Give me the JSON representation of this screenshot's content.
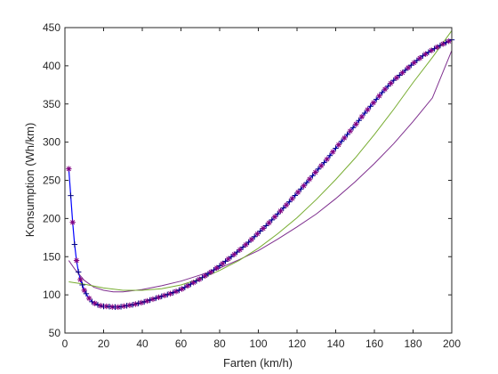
{
  "chart_data": {
    "type": "line",
    "title": "",
    "xlabel": "Farten (km/h)",
    "ylabel": "Konsumption (Wh/km)",
    "xlim": [
      0,
      200
    ],
    "ylim": [
      50,
      450
    ],
    "xticks": [
      0,
      20,
      40,
      60,
      80,
      100,
      120,
      140,
      160,
      180,
      200
    ],
    "yticks": [
      50,
      100,
      150,
      200,
      250,
      300,
      350,
      400,
      450
    ],
    "grid": false,
    "legend": "none",
    "series": [
      {
        "color": "#0000ff",
        "marker_colors": [
          "#800080",
          "#000080"
        ],
        "x": [
          2,
          3,
          4,
          5,
          6,
          7,
          8,
          9,
          10,
          12,
          14,
          16,
          18,
          20,
          22,
          25,
          28,
          30,
          35,
          40,
          45,
          50,
          55,
          60,
          65,
          70,
          75,
          80,
          85,
          90,
          95,
          100,
          105,
          110,
          115,
          120,
          125,
          130,
          135,
          140,
          145,
          150,
          155,
          160,
          165,
          170,
          175,
          180,
          185,
          190,
          195,
          200
        ],
        "y": [
          265,
          230,
          195,
          166,
          145,
          130,
          120,
          113,
          106,
          97,
          91,
          88,
          86,
          85,
          85,
          84,
          84,
          85,
          87,
          90,
          94,
          98,
          102,
          107,
          114,
          121,
          129,
          138,
          148,
          158,
          169,
          181,
          193,
          206,
          219,
          233,
          247,
          262,
          276,
          292,
          307,
          322,
          338,
          353,
          368,
          381,
          392,
          403,
          413,
          421,
          428,
          434
        ]
      },
      {
        "color": "#7e2f8e",
        "x": [
          2,
          5,
          10,
          15,
          20,
          25,
          30,
          40,
          50,
          60,
          70,
          80,
          90,
          100,
          110,
          120,
          130,
          140,
          150,
          160,
          170,
          180,
          190,
          200
        ],
        "y": [
          145,
          134,
          119,
          110,
          106,
          104,
          104,
          107,
          112,
          118,
          126,
          135,
          146,
          158,
          173,
          189,
          206,
          226,
          248,
          272,
          298,
          327,
          358,
          420
        ]
      },
      {
        "color": "#77ac30",
        "x": [
          2,
          10,
          20,
          30,
          40,
          50,
          60,
          70,
          80,
          90,
          100,
          110,
          120,
          130,
          140,
          150,
          160,
          170,
          180,
          190,
          200
        ],
        "y": [
          117,
          114,
          109,
          106,
          106,
          108,
          113,
          121,
          132,
          145,
          161,
          180,
          201,
          225,
          251,
          279,
          310,
          343,
          378,
          411,
          446
        ]
      }
    ]
  }
}
